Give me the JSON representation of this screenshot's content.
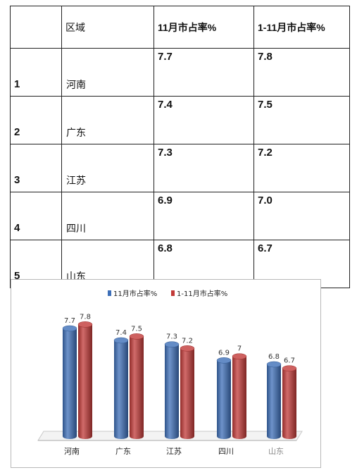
{
  "table": {
    "headers": [
      "",
      "区域",
      "11月市占率%",
      "1-11月市占率%"
    ],
    "rows": [
      {
        "rank": "1",
        "region": "河南",
        "nov": "7.7",
        "ytd": "7.8"
      },
      {
        "rank": "2",
        "region": "广东",
        "nov": "7.4",
        "ytd": "7.5"
      },
      {
        "rank": "3",
        "region": "江苏",
        "nov": "7.3",
        "ytd": "7.2"
      },
      {
        "rank": "4",
        "region": "四川",
        "nov": "6.9",
        "ytd": "7.0"
      },
      {
        "rank": "5",
        "region": "山东",
        "nov": "6.8",
        "ytd": "6.7"
      }
    ]
  },
  "chart_data": {
    "type": "bar",
    "categories": [
      "河南",
      "广东",
      "江苏",
      "四川",
      "山东"
    ],
    "series": [
      {
        "name": "11月市占率%",
        "values": [
          7.7,
          7.4,
          7.3,
          6.9,
          6.8
        ],
        "color": "#3d6fb8"
      },
      {
        "name": "1-11月市占率%",
        "values": [
          7.8,
          7.5,
          7.2,
          7,
          6.7
        ],
        "color": "#c23a38"
      }
    ],
    "data_labels": [
      [
        "7.7",
        "7.4",
        "7.3",
        "6.9",
        "6.8"
      ],
      [
        "7.8",
        "7.5",
        "7.2",
        "7",
        "6.7"
      ]
    ],
    "legend_position": "top",
    "style": "3d-cylinder"
  }
}
